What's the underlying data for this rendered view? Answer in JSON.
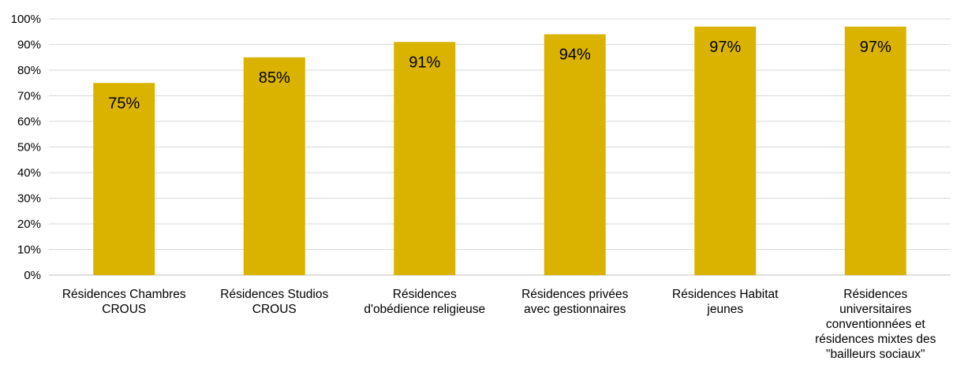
{
  "chart_data": {
    "type": "bar",
    "title": "",
    "xlabel": "",
    "ylabel": "",
    "ylim": [
      0,
      100
    ],
    "yticks": [
      "0%",
      "10%",
      "20%",
      "30%",
      "40%",
      "50%",
      "60%",
      "70%",
      "80%",
      "90%",
      "100%"
    ],
    "grid": true,
    "legend": "none",
    "bar_color": "#d9b300",
    "categories": [
      [
        "Résidences Chambres",
        "CROUS"
      ],
      [
        "Résidences Studios",
        "CROUS"
      ],
      [
        "Résidences",
        "d'obédience religieuse"
      ],
      [
        "Résidences privées",
        "avec gestionnaires"
      ],
      [
        "Résidences Habitat",
        "jeunes"
      ],
      [
        "Résidences",
        "universitaires",
        "conventionnées et",
        "résidences mixtes des",
        "\"bailleurs sociaux\""
      ]
    ],
    "values": [
      75,
      85,
      91,
      94,
      97,
      97
    ],
    "data_labels": [
      "75%",
      "85%",
      "91%",
      "94%",
      "97%",
      "97%"
    ]
  }
}
